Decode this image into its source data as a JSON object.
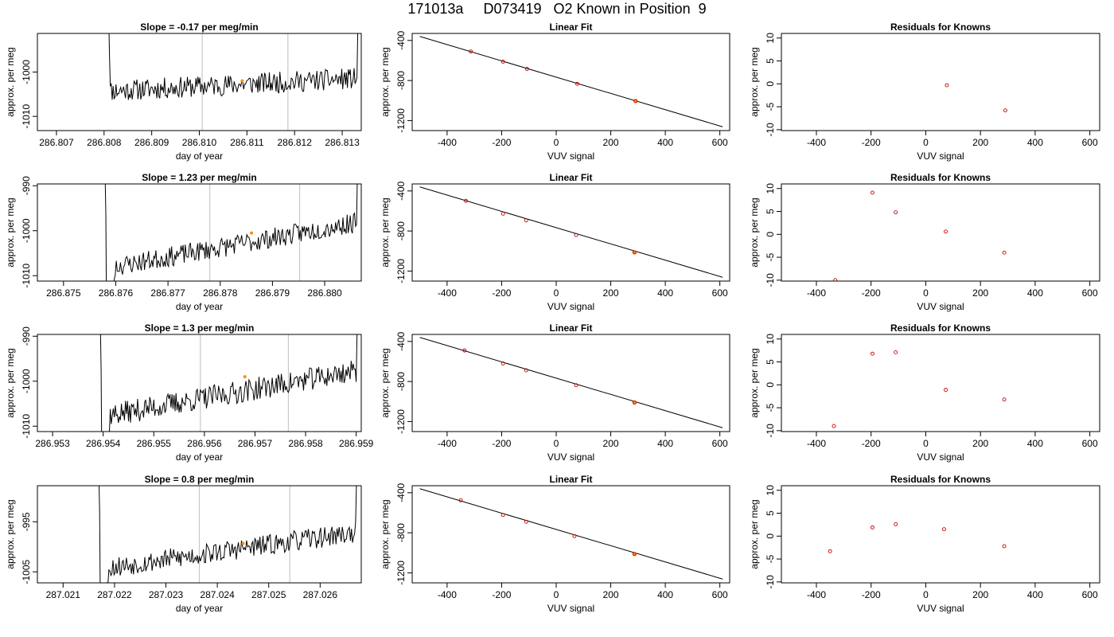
{
  "page": {
    "title": "171013a     D073419   O2 Known in Position  9"
  },
  "colors": {
    "trace": "#000000",
    "points": "#cc0000",
    "highlight": "#ff8c00",
    "vline": "#c8c8c8",
    "frame": "#000000"
  },
  "chart_data": [
    {
      "type": "line",
      "title": "Slope =  -0.17  per meg/min",
      "xlabel": "day of year",
      "ylabel": "approx. per meg",
      "xlim": [
        286.8066,
        286.8134
      ],
      "ylim": [
        -1013.2,
        -991.3
      ],
      "xticks": [
        "286.807",
        "286.808",
        "286.809",
        "286.810",
        "286.811",
        "286.812",
        "286.813"
      ],
      "yticks": [
        -1010,
        -1000
      ],
      "vlines": [
        286.81006,
        286.81186
      ],
      "marker": {
        "x": 286.8109,
        "y": -1002.0
      },
      "series": [
        {
          "start": 286.80805,
          "step": 2e-05,
          "seed": 11,
          "plateau_start": -1004.3,
          "plateau_end": -1001.4,
          "noise": 1.5,
          "rise_start": -960,
          "rise_end": -960
        }
      ]
    },
    {
      "type": "scatter",
      "title": "Linear Fit",
      "xlabel": "VUV signal",
      "ylabel": "approx. per meg",
      "xlim": [
        -528,
        636
      ],
      "ylim": [
        -1300,
        -330
      ],
      "xticks": [
        -400,
        -200,
        0,
        200,
        400,
        600
      ],
      "yticks": [
        -400,
        -800,
        -1200
      ],
      "fit": {
        "x": [
          -500,
          610
        ],
        "y": [
          -360,
          -1262
        ]
      },
      "x": [
        -313,
        -195,
        -107,
        77,
        291
      ],
      "y": [
        -510,
        -612,
        -684,
        -833,
        -1005
      ],
      "highlight_index": 4
    },
    {
      "type": "scatter",
      "title": "Residuals for Knowns",
      "xlabel": "VUV signal",
      "ylabel": "approx. per meg",
      "xlim": [
        -528,
        636
      ],
      "ylim": [
        -10.2,
        11
      ],
      "xticks": [
        -400,
        -200,
        0,
        200,
        400,
        600
      ],
      "yticks": [
        10,
        5,
        0,
        -5,
        -10
      ],
      "x": [
        77,
        291
      ],
      "y": [
        -0.3,
        -5.8
      ]
    },
    {
      "type": "line",
      "title": "Slope =  1.23  per meg/min",
      "xlabel": "day of year",
      "ylabel": "approx. per meg",
      "xlim": [
        286.8745,
        286.8807
      ],
      "ylim": [
        -1011.2,
        -989.6
      ],
      "xticks": [
        "286.875",
        "286.876",
        "286.877",
        "286.878",
        "286.879",
        "286.880"
      ],
      "yticks": [
        -990,
        -1000,
        -1010
      ],
      "vlines": [
        286.8778,
        286.87952
      ],
      "marker": {
        "x": 286.8786,
        "y": -1000.5
      },
      "series": [
        {
          "start": 286.87575,
          "step": 2e-05,
          "seed": 23,
          "plateau_start": -1008.5,
          "plateau_end": -998.0,
          "noise": 1.4,
          "rise_start": -960,
          "rise_end": -960,
          "fall_dip": -1030
        }
      ]
    },
    {
      "type": "scatter",
      "title": "Linear Fit",
      "xlabel": "VUV signal",
      "ylabel": "approx. per meg",
      "xlim": [
        -528,
        636
      ],
      "ylim": [
        -1300,
        -330
      ],
      "xticks": [
        -400,
        -200,
        0,
        200,
        400,
        600
      ],
      "yticks": [
        -400,
        -800,
        -1200
      ],
      "fit": {
        "x": [
          -500,
          610
        ],
        "y": [
          -360,
          -1262
        ]
      },
      "x": [
        -331,
        -195,
        -110,
        73,
        287
      ],
      "y": [
        -499,
        -627,
        -694,
        -840,
        -1013
      ],
      "highlight_index": 4
    },
    {
      "type": "scatter",
      "title": "Residuals for Knowns",
      "xlabel": "VUV signal",
      "ylabel": "approx. per meg",
      "xlim": [
        -528,
        636
      ],
      "ylim": [
        -10.2,
        11
      ],
      "xticks": [
        -400,
        -200,
        0,
        200,
        400,
        600
      ],
      "yticks": [
        10,
        5,
        0,
        -5,
        -10
      ],
      "x": [
        -331,
        -195,
        -110,
        73,
        287
      ],
      "y": [
        -10.0,
        9.1,
        4.8,
        0.6,
        -4.0
      ]
    },
    {
      "type": "line",
      "title": "Slope =  1.3  per meg/min",
      "xlabel": "day of year",
      "ylabel": "approx. per meg",
      "xlim": [
        286.9527,
        286.9591
      ],
      "ylim": [
        -1011.2,
        -989.6
      ],
      "xticks": [
        "286.953",
        "286.954",
        "286.955",
        "286.956",
        "286.957",
        "286.958",
        "286.959"
      ],
      "yticks": [
        -990,
        -1000,
        -1010
      ],
      "vlines": [
        286.95592,
        286.95766
      ],
      "marker": {
        "x": 286.9568,
        "y": -999.0
      },
      "series": [
        {
          "start": 286.9539,
          "step": 2e-05,
          "seed": 37,
          "plateau_start": -1008.0,
          "plateau_end": -997.5,
          "noise": 1.6,
          "rise_start": -960,
          "rise_end": -960,
          "fall_dip": -1030
        }
      ]
    },
    {
      "type": "scatter",
      "title": "Linear Fit",
      "xlabel": "VUV signal",
      "ylabel": "approx. per meg",
      "xlim": [
        -528,
        636
      ],
      "ylim": [
        -1300,
        -330
      ],
      "xticks": [
        -400,
        -200,
        0,
        200,
        400,
        600
      ],
      "yticks": [
        -400,
        -800,
        -1200
      ],
      "fit": {
        "x": [
          -500,
          610
        ],
        "y": [
          -360,
          -1262
        ]
      },
      "x": [
        -336,
        -195,
        -110,
        73,
        287
      ],
      "y": [
        -490,
        -620,
        -688,
        -837,
        -1010
      ],
      "highlight_index": 4
    },
    {
      "type": "scatter",
      "title": "Residuals for Knowns",
      "xlabel": "VUV signal",
      "ylabel": "approx. per meg",
      "xlim": [
        -528,
        636
      ],
      "ylim": [
        -10.2,
        11
      ],
      "xticks": [
        -400,
        -200,
        0,
        200,
        400,
        600
      ],
      "yticks": [
        10,
        5,
        0,
        -5,
        -10
      ],
      "x": [
        -336,
        -195,
        -110,
        73,
        287
      ],
      "y": [
        -9.0,
        6.8,
        7.1,
        -1.1,
        -3.2
      ]
    },
    {
      "type": "line",
      "title": "Slope =  0.8  per meg/min",
      "xlabel": "day of year",
      "ylabel": "approx. per meg",
      "xlim": [
        287.0205,
        287.0268
      ],
      "ylim": [
        -1007.2,
        -987.8
      ],
      "xticks": [
        "287.021",
        "287.022",
        "287.023",
        "287.024",
        "287.025",
        "287.026"
      ],
      "yticks": [
        -995,
        -1005
      ],
      "vlines": [
        287.02365,
        287.02541
      ],
      "marker": {
        "x": 287.0245,
        "y": -999.3
      },
      "series": [
        {
          "start": 287.02165,
          "step": 2e-05,
          "seed": 53,
          "plateau_start": -1004.5,
          "plateau_end": -997.0,
          "noise": 1.3,
          "rise_start": -960,
          "rise_end": -960,
          "fall_dip": -1020
        }
      ]
    },
    {
      "type": "scatter",
      "title": "Linear Fit",
      "xlabel": "VUV signal",
      "ylabel": "approx. per meg",
      "xlim": [
        -528,
        636
      ],
      "ylim": [
        -1300,
        -330
      ],
      "xticks": [
        -400,
        -200,
        0,
        200,
        400,
        600
      ],
      "yticks": [
        -400,
        -800,
        -1200
      ],
      "fit": {
        "x": [
          -500,
          610
        ],
        "y": [
          -360,
          -1262
        ]
      },
      "x": [
        -350,
        -195,
        -110,
        67,
        287
      ],
      "y": [
        -475,
        -622,
        -690,
        -833,
        -1012
      ],
      "highlight_index": 4
    },
    {
      "type": "scatter",
      "title": "Residuals for Knowns",
      "xlabel": "VUV signal",
      "ylabel": "approx. per meg",
      "xlim": [
        -528,
        636
      ],
      "ylim": [
        -10.2,
        11
      ],
      "xticks": [
        -400,
        -200,
        0,
        200,
        400,
        600
      ],
      "yticks": [
        10,
        5,
        0,
        -5,
        -10
      ],
      "x": [
        -350,
        -195,
        -110,
        67,
        287
      ],
      "y": [
        -3.3,
        1.9,
        2.6,
        1.5,
        -2.2
      ]
    }
  ]
}
